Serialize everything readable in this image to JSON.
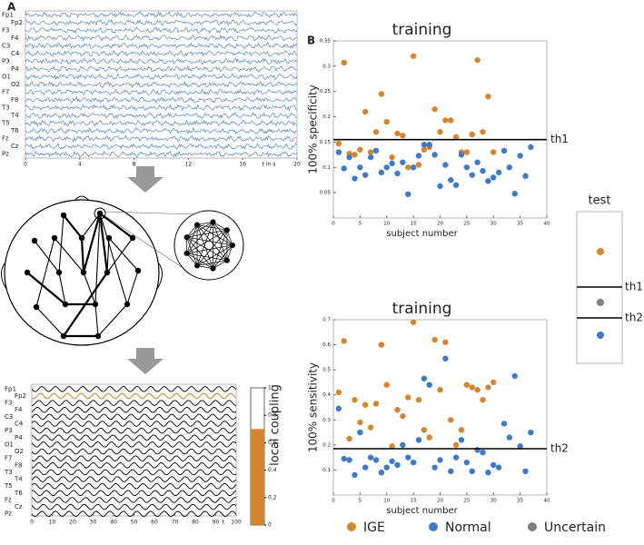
{
  "panel_a": {
    "label": "A",
    "channels": [
      "Fp1",
      "Fp2",
      "F3",
      "F4",
      "C3",
      "C4",
      "P3",
      "P4",
      "O1",
      "O2",
      "F7",
      "F8",
      "T3",
      "T4",
      "T5",
      "T6",
      "Fz",
      "Cz",
      "Pz"
    ],
    "xlim": [
      0,
      20
    ],
    "xticks": [
      0,
      4,
      8,
      12,
      16,
      20
    ],
    "xlabel": "t in s",
    "color": "#3b6fb6"
  },
  "panel_c": {
    "channels": [
      "Fp1",
      "Fp2",
      "F3",
      "F4",
      "C3",
      "C4",
      "P3",
      "P4",
      "O1",
      "O2",
      "F7",
      "F8",
      "T3",
      "T4",
      "T5",
      "T6",
      "Fz",
      "Cz",
      "Pz"
    ],
    "highlight": "Fp2",
    "highlight_color": "#d4862f",
    "xlim": [
      0,
      100
    ],
    "xticks": [
      0,
      10,
      20,
      30,
      40,
      50,
      60,
      70,
      80,
      90,
      100
    ],
    "xlabel": "t",
    "colorbar": {
      "label": "local coupling",
      "lim": [
        0,
        1
      ],
      "ticks": [
        0,
        0.2,
        0.4,
        0.6,
        0.8,
        1
      ],
      "value": 0.7,
      "color": "#d4862f"
    }
  },
  "panel_b": {
    "label": "B"
  },
  "chart_data": [
    {
      "type": "scatter",
      "title": "training",
      "xlabel": "subject number",
      "ylabel": "100% specificity",
      "xlim": [
        0,
        40
      ],
      "xticks": [
        0,
        5,
        10,
        15,
        20,
        25,
        30,
        35,
        40
      ],
      "ylim": [
        0,
        0.35
      ],
      "yticks": [
        0.05,
        0.1,
        0.15,
        0.2,
        0.25,
        0.3,
        0.35
      ],
      "thresholds": [
        {
          "label": "th1",
          "value": 0.155
        }
      ],
      "series": [
        {
          "name": "IGE",
          "color": "#d4862f",
          "x": [
            1,
            2,
            3,
            4,
            5,
            6,
            7,
            8,
            9,
            10,
            11,
            12,
            13,
            14,
            15,
            16,
            17,
            18,
            19,
            20,
            21,
            22,
            23,
            24,
            25,
            26,
            27,
            28,
            29,
            30
          ],
          "y": [
            0.147,
            0.307,
            0.127,
            0.125,
            0.135,
            0.21,
            0.13,
            0.17,
            0.245,
            0.19,
            0.12,
            0.167,
            0.163,
            0.1,
            0.32,
            0.105,
            0.135,
            0.14,
            0.215,
            0.17,
            0.193,
            0.193,
            0.16,
            0.13,
            0.13,
            0.165,
            0.312,
            0.17,
            0.24,
            0.13
          ]
        },
        {
          "name": "Normal",
          "color": "#3f7ac6",
          "x": [
            1,
            2,
            3,
            4,
            5,
            6,
            7,
            8,
            9,
            10,
            11,
            12,
            13,
            14,
            15,
            16,
            17,
            18,
            19,
            20,
            21,
            22,
            23,
            24,
            25,
            26,
            27,
            28,
            29,
            30,
            31,
            32,
            33,
            34,
            35,
            36,
            37
          ],
          "y": [
            0.13,
            0.098,
            0.12,
            0.078,
            0.1,
            0.085,
            0.12,
            0.133,
            0.09,
            0.1,
            0.108,
            0.088,
            0.11,
            0.047,
            0.1,
            0.123,
            0.145,
            0.145,
            0.125,
            0.063,
            0.105,
            0.075,
            0.065,
            0.125,
            0.1,
            0.085,
            0.11,
            0.093,
            0.073,
            0.08,
            0.09,
            0.133,
            0.1,
            0.048,
            0.123,
            0.083,
            0.14
          ]
        }
      ]
    },
    {
      "type": "scatter",
      "title": "training",
      "xlabel": "subject number",
      "ylabel": "100% sensitivity",
      "xlim": [
        0,
        40
      ],
      "xticks": [
        0,
        5,
        10,
        15,
        20,
        25,
        30,
        35,
        40
      ],
      "ylim": [
        0,
        0.7
      ],
      "yticks": [
        0.1,
        0.2,
        0.3,
        0.4,
        0.5,
        0.6,
        0.7
      ],
      "thresholds": [
        {
          "label": "th2",
          "value": 0.185
        }
      ],
      "series": [
        {
          "name": "IGE",
          "color": "#d4862f",
          "x": [
            1,
            2,
            3,
            4,
            5,
            6,
            7,
            8,
            9,
            10,
            11,
            12,
            13,
            14,
            15,
            16,
            17,
            18,
            19,
            20,
            21,
            22,
            23,
            24,
            25,
            26,
            27,
            28,
            29,
            30
          ],
          "y": [
            0.41,
            0.615,
            0.225,
            0.38,
            0.29,
            0.36,
            0.27,
            0.365,
            0.6,
            0.44,
            0.195,
            0.34,
            0.315,
            0.39,
            0.69,
            0.38,
            0.26,
            0.23,
            0.62,
            0.42,
            0.61,
            0.3,
            0.2,
            0.26,
            0.44,
            0.43,
            0.42,
            0.38,
            0.43,
            0.45
          ]
        },
        {
          "name": "Normal",
          "color": "#3f7ac6",
          "x": [
            1,
            2,
            3,
            4,
            5,
            6,
            7,
            8,
            9,
            10,
            11,
            12,
            13,
            14,
            15,
            16,
            17,
            18,
            19,
            20,
            21,
            22,
            23,
            24,
            25,
            26,
            27,
            28,
            29,
            30,
            31,
            32,
            33,
            34,
            35,
            36,
            37
          ],
          "y": [
            0.345,
            0.145,
            0.14,
            0.08,
            0.25,
            0.11,
            0.15,
            0.14,
            0.09,
            0.11,
            0.135,
            0.12,
            0.2,
            0.15,
            0.13,
            0.22,
            0.465,
            0.44,
            0.11,
            0.14,
            0.545,
            0.095,
            0.15,
            0.22,
            0.13,
            0.095,
            0.18,
            0.17,
            0.09,
            0.12,
            0.11,
            0.285,
            0.23,
            0.475,
            0.195,
            0.095,
            0.25
          ]
        }
      ]
    },
    {
      "type": "test",
      "title": "test",
      "thresholds": [
        "th1",
        "th2"
      ],
      "points": [
        "#d4862f",
        "#808080",
        "#3f7ac6"
      ]
    }
  ],
  "legend": [
    {
      "name": "IGE",
      "color": "#d4862f"
    },
    {
      "name": "Normal",
      "color": "#3f7ac6"
    },
    {
      "name": "Uncertain",
      "color": "#808080"
    }
  ]
}
